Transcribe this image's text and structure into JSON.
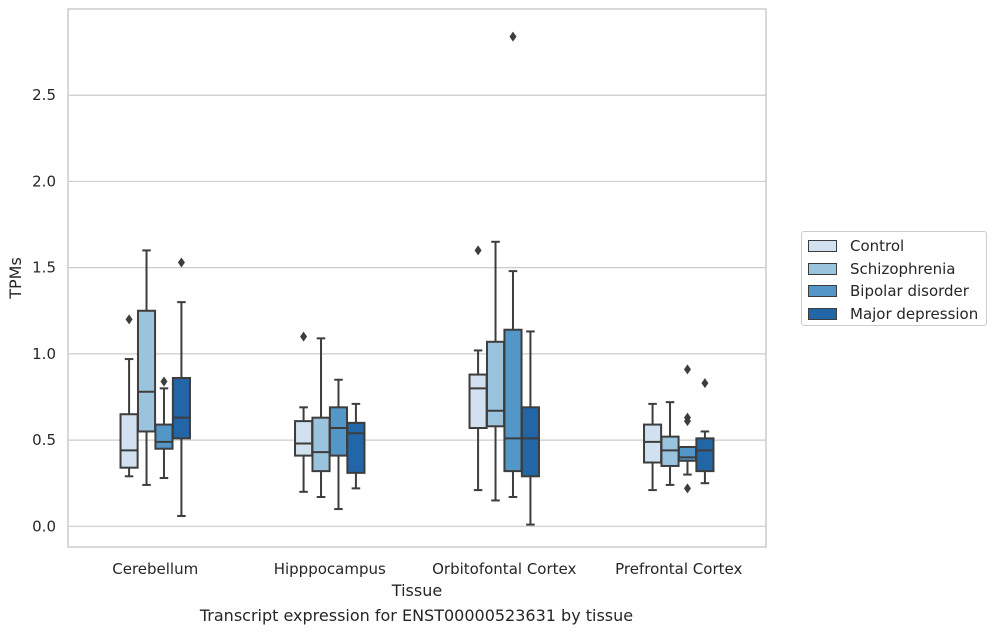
{
  "caption": "Transcript expression for ENST00000523631 by tissue",
  "chart_data": {
    "type": "box",
    "xlabel": "Tissue",
    "ylabel": "TPMs",
    "ylim": [
      -0.12,
      3.0
    ],
    "yticks": [
      0.0,
      0.5,
      1.0,
      1.5,
      2.0,
      2.5
    ],
    "ytick_labels": [
      "0.0",
      "0.5",
      "1.0",
      "1.5",
      "2.0",
      "2.5"
    ],
    "grid": "horizontal",
    "legend_position": "right",
    "categories": [
      "Cerebellum",
      "Hipppocampus",
      "Orbitofontal Cortex",
      "Prefrontal Cortex"
    ],
    "series": [
      {
        "name": "Control",
        "color": "#d1e1f0",
        "boxes": [
          {
            "whislo": 0.29,
            "q1": 0.34,
            "med": 0.44,
            "q3": 0.65,
            "whishi": 0.97,
            "fliers": [
              1.2
            ]
          },
          {
            "whislo": 0.2,
            "q1": 0.41,
            "med": 0.48,
            "q3": 0.61,
            "whishi": 0.69,
            "fliers": [
              1.1
            ]
          },
          {
            "whislo": 0.21,
            "q1": 0.57,
            "med": 0.8,
            "q3": 0.88,
            "whishi": 1.02,
            "fliers": [
              1.6
            ]
          },
          {
            "whislo": 0.21,
            "q1": 0.37,
            "med": 0.49,
            "q3": 0.59,
            "whishi": 0.71,
            "fliers": []
          }
        ]
      },
      {
        "name": "Schizophrenia",
        "color": "#9ac4dd",
        "boxes": [
          {
            "whislo": 0.24,
            "q1": 0.55,
            "med": 0.78,
            "q3": 1.25,
            "whishi": 1.6,
            "fliers": []
          },
          {
            "whislo": 0.17,
            "q1": 0.32,
            "med": 0.43,
            "q3": 0.63,
            "whishi": 1.09,
            "fliers": []
          },
          {
            "whislo": 0.15,
            "q1": 0.58,
            "med": 0.67,
            "q3": 1.07,
            "whishi": 1.65,
            "fliers": []
          },
          {
            "whislo": 0.24,
            "q1": 0.35,
            "med": 0.44,
            "q3": 0.52,
            "whishi": 0.72,
            "fliers": []
          }
        ]
      },
      {
        "name": "Bipolar disorder",
        "color": "#5297c8",
        "boxes": [
          {
            "whislo": 0.28,
            "q1": 0.45,
            "med": 0.49,
            "q3": 0.59,
            "whishi": 0.8,
            "fliers": [
              0.84
            ]
          },
          {
            "whislo": 0.1,
            "q1": 0.41,
            "med": 0.57,
            "q3": 0.69,
            "whishi": 0.85,
            "fliers": []
          },
          {
            "whislo": 0.17,
            "q1": 0.32,
            "med": 0.51,
            "q3": 1.14,
            "whishi": 1.48,
            "fliers": [
              2.84
            ]
          },
          {
            "whislo": 0.3,
            "q1": 0.38,
            "med": 0.4,
            "q3": 0.46,
            "whishi": 0.46,
            "fliers": [
              0.91,
              0.63,
              0.61,
              0.22
            ]
          }
        ]
      },
      {
        "name": "Major depression",
        "color": "#2366a8",
        "boxes": [
          {
            "whislo": 0.06,
            "q1": 0.51,
            "med": 0.63,
            "q3": 0.86,
            "whishi": 1.3,
            "fliers": [
              1.53
            ]
          },
          {
            "whislo": 0.22,
            "q1": 0.31,
            "med": 0.54,
            "q3": 0.6,
            "whishi": 0.71,
            "fliers": []
          },
          {
            "whislo": 0.01,
            "q1": 0.29,
            "med": 0.51,
            "q3": 0.69,
            "whishi": 1.13,
            "fliers": []
          },
          {
            "whislo": 0.25,
            "q1": 0.32,
            "med": 0.44,
            "q3": 0.51,
            "whishi": 0.55,
            "fliers": [
              0.83
            ]
          }
        ]
      }
    ]
  }
}
